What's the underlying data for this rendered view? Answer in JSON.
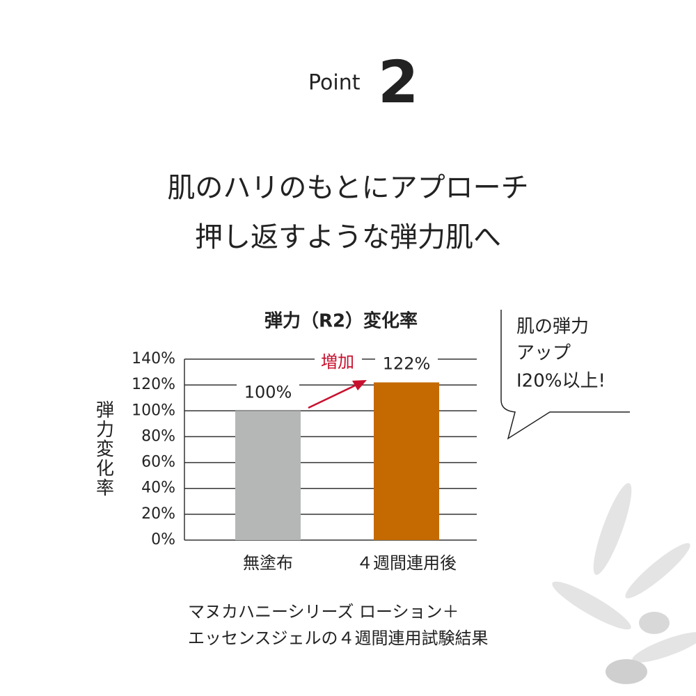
{
  "header": {
    "label": "Point",
    "number": "2"
  },
  "headline": [
    "肌のハリのもとにアプローチ",
    "押し返すような弾力肌へ"
  ],
  "chart_data": {
    "type": "bar",
    "title": "弾力（R2）変化率",
    "ylabel": "弾力変化率",
    "categories": [
      "無塗布",
      "４週間連用後"
    ],
    "values": [
      100,
      122
    ],
    "value_labels": [
      "100%",
      "122%"
    ],
    "colors": [
      "#b5b6b6",
      "#c46a00"
    ],
    "annotation": "増加",
    "annotation_color": "#c8102e",
    "ylim": [
      0,
      140
    ],
    "yticks": [
      {
        "value": 0,
        "label": "0%"
      },
      {
        "value": 20,
        "label": "20%"
      },
      {
        "value": 40,
        "label": "40%"
      },
      {
        "value": 60,
        "label": "60%"
      },
      {
        "value": 80,
        "label": "80%"
      },
      {
        "value": 100,
        "label": "100%"
      },
      {
        "value": 120,
        "label": "120%"
      },
      {
        "value": 140,
        "label": "140%"
      }
    ],
    "grid": true
  },
  "bubble": [
    "肌の弾力",
    "アップ",
    "I20%以上!"
  ],
  "footnote": [
    "マヌカハニーシリーズ ローション＋",
    "エッセンスジェルの４週間連用試験結果"
  ]
}
